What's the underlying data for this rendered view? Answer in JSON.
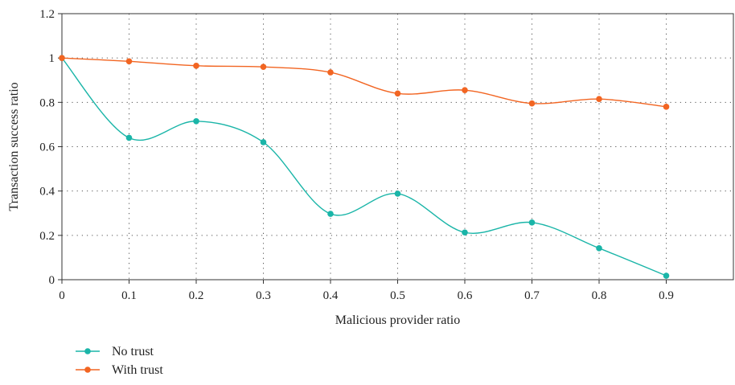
{
  "chart_data": {
    "type": "line",
    "xlabel": "Malicious provider ratio",
    "ylabel": "Transaction success ratio",
    "x": [
      0,
      0.1,
      0.2,
      0.3,
      0.4,
      0.5,
      0.6,
      0.7,
      0.8,
      0.9
    ],
    "x_ticks": [
      "0",
      "0.1",
      "0.2",
      "0.3",
      "0.4",
      "0.5",
      "0.6",
      "0.7",
      "0.8",
      "0.9"
    ],
    "y_ticks": [
      "0",
      "0.2",
      "0.4",
      "0.6",
      "0.8",
      "1",
      "1.2"
    ],
    "xlim": [
      0,
      1.0
    ],
    "ylim": [
      0,
      1.2
    ],
    "grid": true,
    "legend_position": "bottom-left",
    "series": [
      {
        "name": "No trust",
        "color": "#1ab5a8",
        "values": [
          1.0,
          0.64,
          0.715,
          0.62,
          0.297,
          0.388,
          0.213,
          0.258,
          0.142,
          0.018
        ]
      },
      {
        "name": "With trust",
        "color": "#f26522",
        "values": [
          1.0,
          0.985,
          0.965,
          0.96,
          0.935,
          0.84,
          0.855,
          0.795,
          0.815,
          0.78
        ]
      }
    ]
  }
}
